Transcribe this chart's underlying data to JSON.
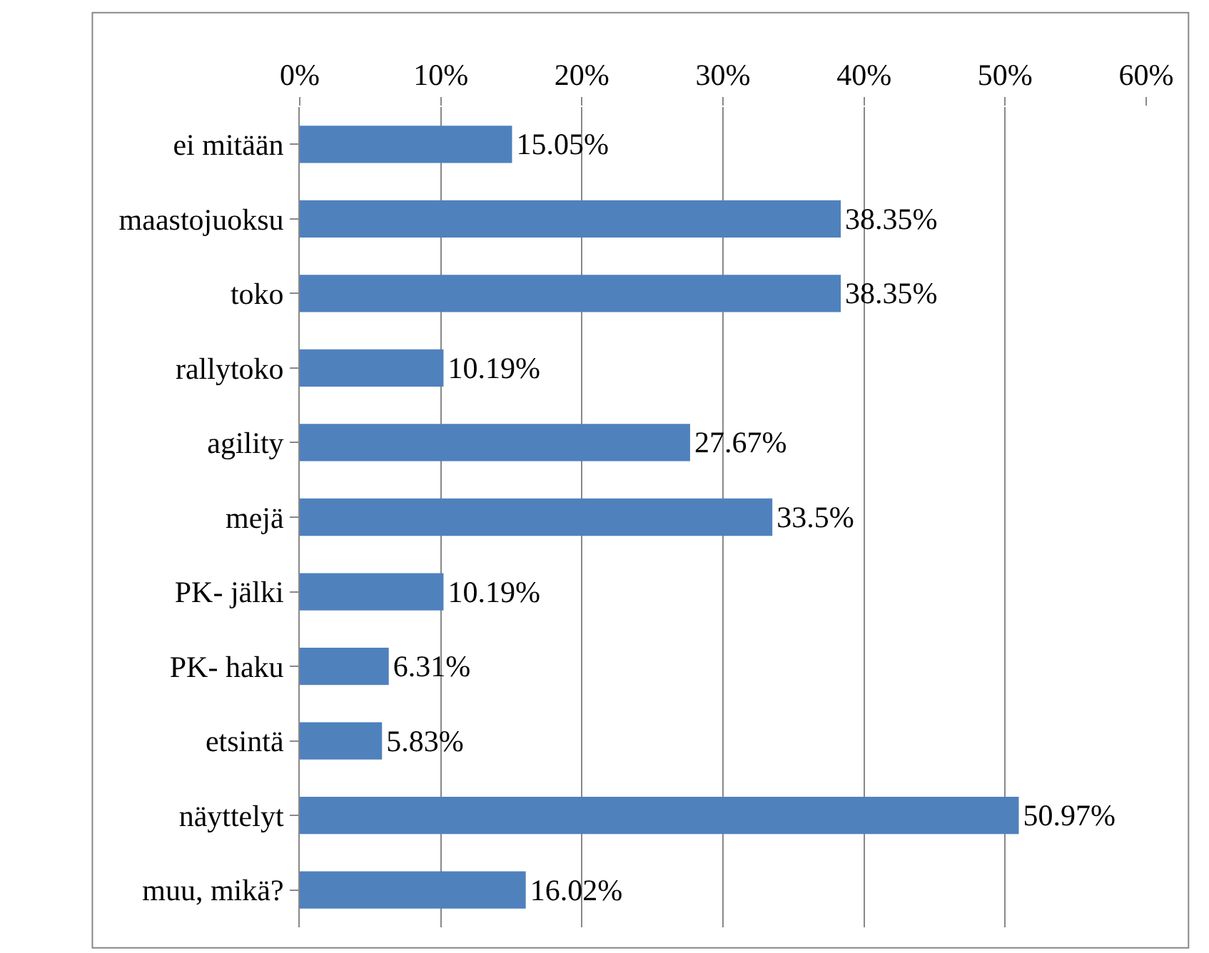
{
  "chart_data": {
    "type": "bar",
    "orientation": "horizontal",
    "categories": [
      "ei mitään",
      "maastojuoksu",
      "toko",
      "rallytoko",
      "agility",
      "mejä",
      "PK- jälki",
      "PK- haku",
      "etsintä",
      "näyttelyt",
      "muu, mikä?"
    ],
    "values": [
      15.05,
      38.35,
      38.35,
      10.19,
      27.67,
      33.5,
      10.19,
      6.31,
      5.83,
      50.97,
      16.02
    ],
    "value_labels": [
      "15.05%",
      "38.35%",
      "38.35%",
      "10.19%",
      "27.67%",
      "33.5%",
      "10.19%",
      "6.31%",
      "5.83%",
      "50.97%",
      "16.02%"
    ],
    "color": "#4f81bd",
    "xlim": [
      0,
      60
    ],
    "xticks": [
      {
        "value": 0,
        "label": "0%"
      },
      {
        "value": 10,
        "label": "10%"
      },
      {
        "value": 20,
        "label": "20%"
      },
      {
        "value": 30,
        "label": "30%"
      },
      {
        "value": 40,
        "label": "40%"
      },
      {
        "value": 50,
        "label": "50%"
      },
      {
        "value": 60,
        "label": "60%"
      }
    ],
    "grid": "x",
    "legend": false
  }
}
